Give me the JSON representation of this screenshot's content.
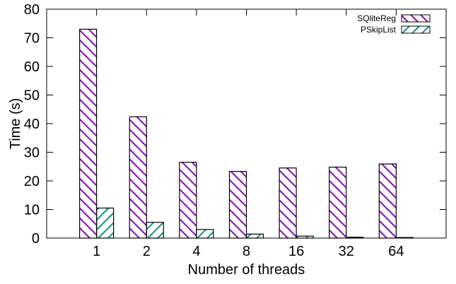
{
  "chart_data": {
    "type": "bar",
    "categories": [
      "1",
      "2",
      "4",
      "8",
      "16",
      "32",
      "64"
    ],
    "series": [
      {
        "name": "SQliteReg",
        "values": [
          73.0,
          42.4,
          26.5,
          23.3,
          24.5,
          24.8,
          25.9
        ]
      },
      {
        "name": "PSkipList",
        "values": [
          10.5,
          5.5,
          3.0,
          1.4,
          0.7,
          0.3,
          0.2
        ]
      }
    ],
    "xlabel": "Number of threads",
    "ylabel": "Time (s)",
    "ylim": [
      0,
      80
    ],
    "yticks": [
      "0",
      "10",
      "20",
      "30",
      "40",
      "50",
      "60",
      "70",
      "80"
    ],
    "legend": "top-right",
    "grid": false,
    "colors": {
      "SQliteReg": "#9400d3",
      "PSkipList": "#009e73",
      "frame": "#000000"
    }
  }
}
